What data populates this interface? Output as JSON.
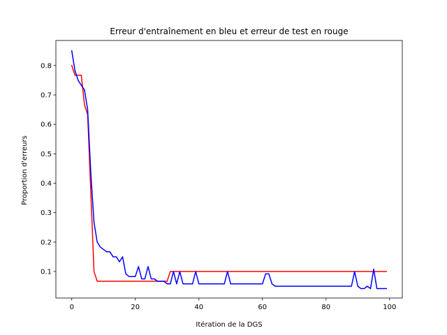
{
  "chart_data": {
    "type": "line",
    "title": "Erreur d'entraînement en bleu et erreur de test en rouge",
    "xlabel": "Itération de la DGS",
    "ylabel": "Proportion d'erreurs",
    "xlim": [
      -5,
      104
    ],
    "ylim": [
      0.01,
      0.885
    ],
    "xticks": [
      0,
      20,
      40,
      60,
      80,
      100
    ],
    "xtick_labels": [
      "0",
      "20",
      "40",
      "60",
      "80",
      "100"
    ],
    "yticks": [
      0.1,
      0.2,
      0.3,
      0.4,
      0.5,
      0.6,
      0.7,
      0.8
    ],
    "ytick_labels": [
      "0.1",
      "0.2",
      "0.3",
      "0.4",
      "0.5",
      "0.6",
      "0.7",
      "0.8"
    ],
    "grid": false,
    "legend": "none",
    "series": [
      {
        "color": "#ff0000",
        "x": [
          0,
          1,
          2,
          3,
          4,
          5,
          6,
          7,
          8,
          30,
          31,
          99
        ],
        "y": [
          0.8,
          0.767,
          0.767,
          0.767,
          0.667,
          0.633,
          0.367,
          0.1,
          0.067,
          0.067,
          0.1,
          0.1
        ]
      },
      {
        "color": "#0000ff",
        "x": [
          0,
          1,
          2,
          3,
          4,
          5,
          6,
          7,
          8,
          9,
          10,
          11,
          12,
          13,
          14,
          15,
          16,
          17,
          18,
          19,
          20,
          21,
          22,
          23,
          24,
          25,
          26,
          27,
          28,
          29,
          30,
          31,
          32,
          33,
          34,
          35,
          36,
          37,
          38,
          39,
          40,
          41,
          42,
          43,
          44,
          45,
          46,
          47,
          48,
          49,
          50,
          51,
          52,
          53,
          54,
          55,
          56,
          57,
          58,
          59,
          60,
          61,
          62,
          63,
          64,
          65,
          66,
          67,
          68,
          69,
          70,
          71,
          72,
          73,
          74,
          75,
          76,
          77,
          78,
          79,
          80,
          81,
          82,
          83,
          84,
          85,
          86,
          87,
          88,
          89,
          90,
          91,
          92,
          93,
          94,
          95,
          96,
          97,
          98,
          99
        ],
        "y": [
          0.85,
          0.783,
          0.75,
          0.733,
          0.717,
          0.65,
          0.433,
          0.267,
          0.2,
          0.183,
          0.175,
          0.167,
          0.167,
          0.15,
          0.15,
          0.133,
          0.15,
          0.092,
          0.083,
          0.083,
          0.083,
          0.117,
          0.075,
          0.075,
          0.117,
          0.075,
          0.075,
          0.067,
          0.067,
          0.067,
          0.058,
          0.058,
          0.1,
          0.058,
          0.1,
          0.058,
          0.058,
          0.058,
          0.058,
          0.1,
          0.058,
          0.058,
          0.058,
          0.058,
          0.058,
          0.058,
          0.058,
          0.058,
          0.058,
          0.1,
          0.058,
          0.058,
          0.058,
          0.058,
          0.058,
          0.058,
          0.058,
          0.058,
          0.058,
          0.058,
          0.058,
          0.092,
          0.092,
          0.058,
          0.05,
          0.05,
          0.05,
          0.05,
          0.05,
          0.05,
          0.05,
          0.05,
          0.05,
          0.05,
          0.05,
          0.05,
          0.05,
          0.05,
          0.05,
          0.05,
          0.05,
          0.05,
          0.05,
          0.05,
          0.05,
          0.05,
          0.05,
          0.05,
          0.05,
          0.1,
          0.05,
          0.042,
          0.042,
          0.05,
          0.042,
          0.108,
          0.042,
          0.042,
          0.042,
          0.042
        ]
      }
    ]
  }
}
